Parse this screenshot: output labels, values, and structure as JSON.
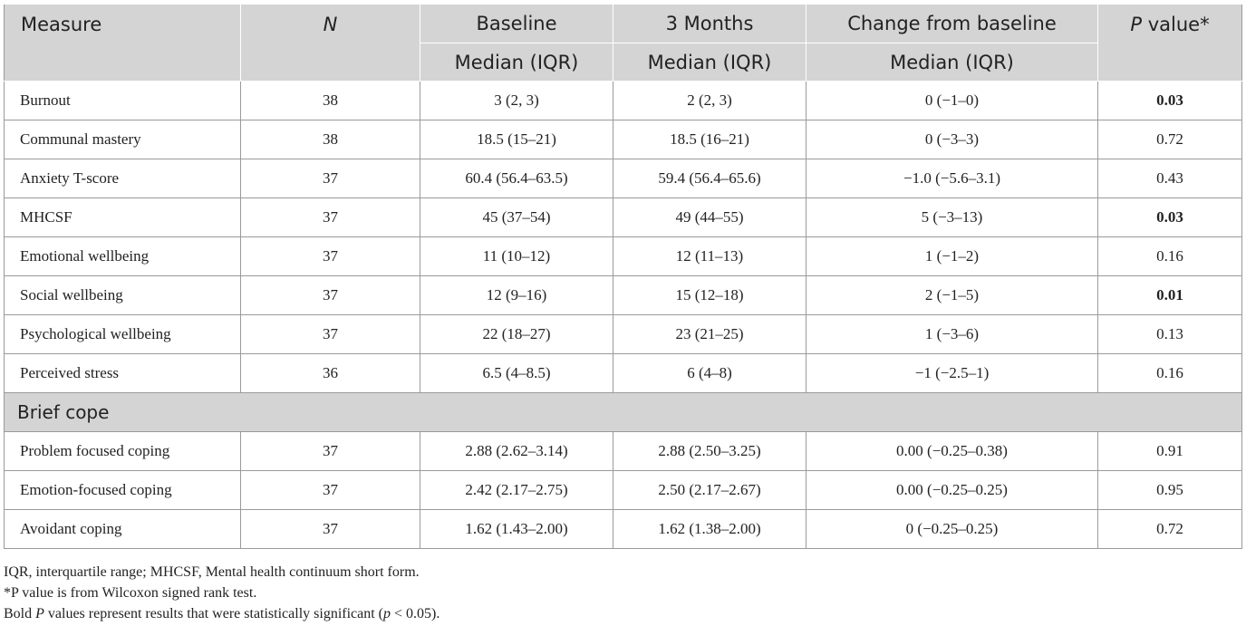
{
  "table": {
    "header": {
      "measure": "Measure",
      "n": "N",
      "baseline": "Baseline",
      "months3": "3 Months",
      "change": "Change from baseline",
      "pvalue_p": "P",
      "pvalue_rest": " value*",
      "sub_label": "Median (IQR)"
    },
    "rows": [
      {
        "measure": "Burnout",
        "n": "38",
        "baseline": "3 (2, 3)",
        "months3": "2 (2, 3)",
        "change": "0 (−1–0)",
        "p": "0.03",
        "significant": true
      },
      {
        "measure": "Communal mastery",
        "n": "38",
        "baseline": "18.5 (15–21)",
        "months3": "18.5 (16–21)",
        "change": "0 (−3–3)",
        "p": "0.72",
        "significant": false
      },
      {
        "measure": "Anxiety T-score",
        "n": "37",
        "baseline": "60.4 (56.4–63.5)",
        "months3": "59.4 (56.4–65.6)",
        "change": "−1.0 (−5.6–3.1)",
        "p": "0.43",
        "significant": false
      },
      {
        "measure": "MHCSF",
        "n": "37",
        "baseline": "45 (37–54)",
        "months3": "49 (44–55)",
        "change": "5 (−3–13)",
        "p": "0.03",
        "significant": true
      },
      {
        "measure": "Emotional wellbeing",
        "n": "37",
        "baseline": "11 (10–12)",
        "months3": "12 (11–13)",
        "change": "1 (−1–2)",
        "p": "0.16",
        "significant": false
      },
      {
        "measure": "Social wellbeing",
        "n": "37",
        "baseline": "12 (9–16)",
        "months3": "15 (12–18)",
        "change": "2 (−1–5)",
        "p": "0.01",
        "significant": true
      },
      {
        "measure": "Psychological wellbeing",
        "n": "37",
        "baseline": "22 (18–27)",
        "months3": "23 (21–25)",
        "change": "1 (−3–6)",
        "p": "0.13",
        "significant": false
      },
      {
        "measure": "Perceived stress",
        "n": "36",
        "baseline": "6.5 (4–8.5)",
        "months3": "6 (4–8)",
        "change": "−1 (−2.5–1)",
        "p": "0.16",
        "significant": false
      }
    ],
    "section_label": "Brief cope",
    "section_rows": [
      {
        "measure": "Problem focused coping",
        "n": "37",
        "baseline": "2.88 (2.62–3.14)",
        "months3": "2.88 (2.50–3.25)",
        "change": "0.00 (−0.25–0.38)",
        "p": "0.91",
        "significant": false
      },
      {
        "measure": "Emotion-focused coping",
        "n": "37",
        "baseline": "2.42 (2.17–2.75)",
        "months3": "2.50 (2.17–2.67)",
        "change": "0.00 (−0.25–0.25)",
        "p": "0.95",
        "significant": false
      },
      {
        "measure": "Avoidant coping",
        "n": "37",
        "baseline": "1.62 (1.43–2.00)",
        "months3": "1.62 (1.38–2.00)",
        "change": "0 (−0.25–0.25)",
        "p": "0.72",
        "significant": false
      }
    ]
  },
  "notes": {
    "line1": "IQR, interquartile range; MHCSF, Mental health continuum short form.",
    "line2": "*P value is from Wilcoxon signed rank test.",
    "line3_a": "Bold ",
    "line3_p": "P",
    "line3_b": " values represent results that were statistically significant (",
    "line3_pp": "p",
    "line3_c": " < 0.05)."
  }
}
